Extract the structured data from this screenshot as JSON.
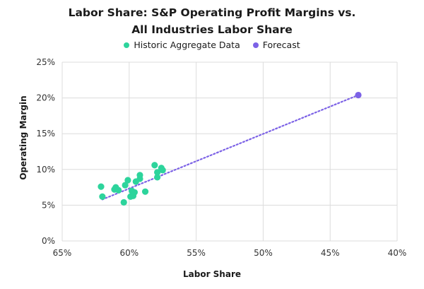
{
  "chart_data": {
    "type": "scatter",
    "title_line1": "Labor Share: S&P Operating Profit Margins vs.",
    "title_line2": "All Industries Labor Share",
    "xlabel": "Labor Share",
    "ylabel": "Operating Margin",
    "x_reversed": true,
    "xlim": [
      65,
      40
    ],
    "ylim": [
      0,
      25
    ],
    "x_ticks": [
      65,
      60,
      55,
      50,
      45,
      40
    ],
    "x_tick_labels": [
      "65%",
      "60%",
      "55%",
      "50%",
      "45%",
      "40%"
    ],
    "y_ticks": [
      0,
      5,
      10,
      15,
      20,
      25
    ],
    "y_tick_labels": [
      "0%",
      "5%",
      "10%",
      "15%",
      "20%",
      "25%"
    ],
    "grid": true,
    "legend_position": "top-center",
    "series": [
      {
        "name": "Historic Aggregate Data",
        "color": "#2dd49c",
        "points": [
          {
            "x": 62.1,
            "y": 7.6
          },
          {
            "x": 62.0,
            "y": 6.2
          },
          {
            "x": 61.1,
            "y": 7.2
          },
          {
            "x": 61.0,
            "y": 7.5
          },
          {
            "x": 60.8,
            "y": 7.1
          },
          {
            "x": 60.3,
            "y": 7.8
          },
          {
            "x": 60.1,
            "y": 8.5
          },
          {
            "x": 60.4,
            "y": 5.4
          },
          {
            "x": 59.9,
            "y": 6.2
          },
          {
            "x": 59.8,
            "y": 7.0
          },
          {
            "x": 59.7,
            "y": 6.3
          },
          {
            "x": 59.6,
            "y": 6.8
          },
          {
            "x": 59.5,
            "y": 8.3
          },
          {
            "x": 59.2,
            "y": 8.7
          },
          {
            "x": 59.2,
            "y": 9.2
          },
          {
            "x": 58.8,
            "y": 6.9
          },
          {
            "x": 58.1,
            "y": 10.6
          },
          {
            "x": 57.9,
            "y": 9.6
          },
          {
            "x": 57.9,
            "y": 8.9
          },
          {
            "x": 57.6,
            "y": 10.2
          },
          {
            "x": 57.5,
            "y": 9.9
          }
        ]
      },
      {
        "name": "Forecast",
        "color": "#7c62e6",
        "points": [
          {
            "x": 42.9,
            "y": 20.4
          }
        ]
      }
    ],
    "trendline": {
      "color": "#7c62e6",
      "style": "dotted",
      "start": {
        "x": 62.0,
        "y": 5.8
      },
      "end": {
        "x": 42.9,
        "y": 20.4
      }
    }
  }
}
